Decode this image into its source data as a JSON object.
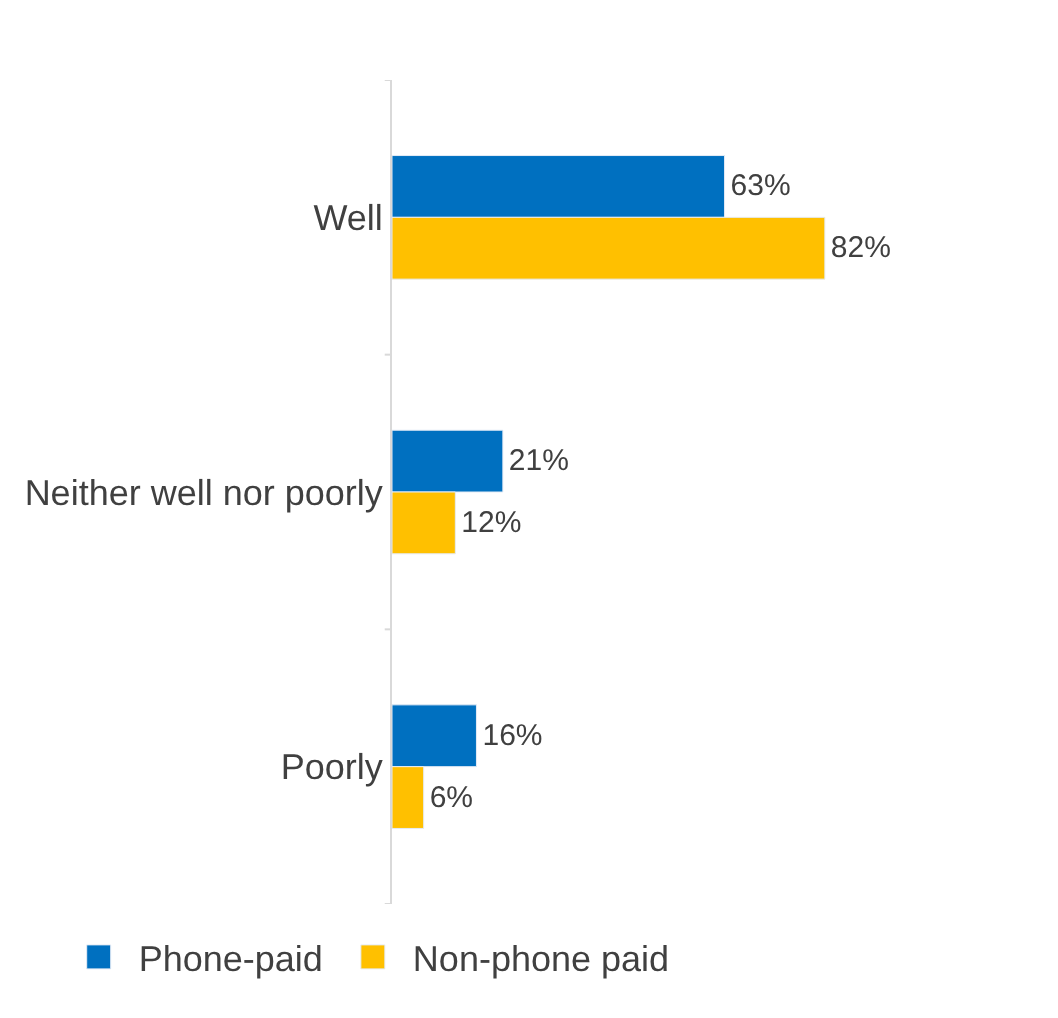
{
  "chart_data": {
    "type": "bar",
    "orientation": "horizontal",
    "categories": [
      "Well",
      "Neither well nor poorly",
      "Poorly"
    ],
    "series": [
      {
        "name": "Phone-paid",
        "color": "#0070c0",
        "values": [
          63,
          21,
          16
        ],
        "value_labels": [
          "63%",
          "21%",
          "16%"
        ]
      },
      {
        "name": "Non-phone paid",
        "color": "#ffc000",
        "values": [
          82,
          12,
          6
        ],
        "value_labels": [
          "82%",
          "12%",
          "6%"
        ]
      }
    ],
    "tick_labels": "y",
    "legend": "bottom"
  }
}
